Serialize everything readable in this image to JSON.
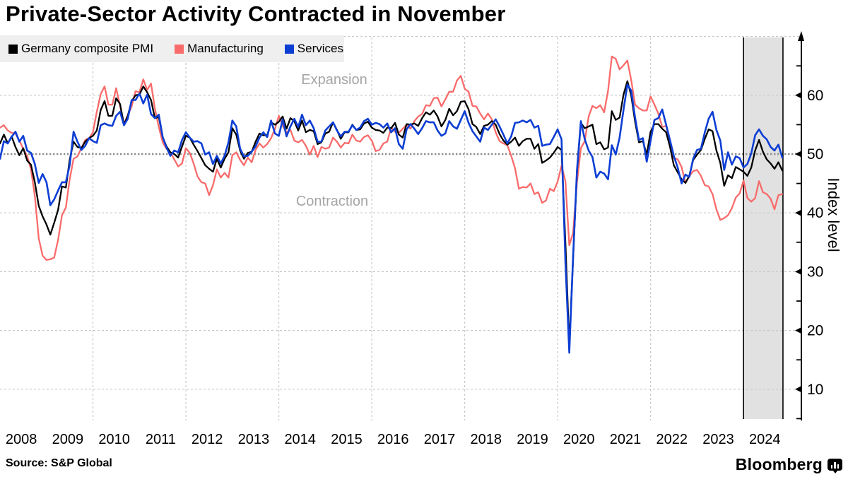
{
  "title": "Private-Sector Activity Contracted in November",
  "source": "Source: S&P Global",
  "brand": "Bloomberg",
  "annotations": {
    "expansion": "Expansion",
    "contraction": "Contraction"
  },
  "legend": [
    {
      "label": "Germany composite PMI",
      "color": "#000000"
    },
    {
      "label": "Manufacturing",
      "color": "#f96b6b"
    },
    {
      "label": "Services",
      "color": "#0d3ed4"
    }
  ],
  "y_axis": {
    "label": "Index level",
    "ticks": [
      10,
      20,
      30,
      40,
      50,
      60
    ],
    "minor_ticks": [
      5,
      15,
      25,
      35,
      45,
      55,
      65
    ],
    "baseline": 50,
    "range": [
      4.5,
      70
    ]
  },
  "x_axis": {
    "years": [
      2008,
      2009,
      2010,
      2011,
      2012,
      2013,
      2014,
      2015,
      2016,
      2017,
      2018,
      2019,
      2020,
      2021,
      2022,
      2023,
      2024
    ],
    "gridline_years": [
      2010,
      2012,
      2014,
      2016,
      2018,
      2020,
      2022
    ]
  },
  "highlight_band": {
    "start": "2024-01",
    "end": "2024-11",
    "fill": "#e1e1e1"
  },
  "chart_data": {
    "type": "line",
    "x_start": "2008-01",
    "x_end": "2024-11",
    "frequency": "monthly",
    "title": "Private-Sector Activity Contracted in November",
    "ylabel": "Index level",
    "ylim": [
      4.5,
      70
    ],
    "grid": true,
    "legend_position": "top-left",
    "reference_line": 50,
    "series": [
      {
        "name": "Germany composite PMI",
        "color": "#000000",
        "values": [
          51.8,
          53.3,
          51.8,
          53.0,
          51.2,
          49.8,
          51.0,
          48.9,
          48.2,
          45.2,
          41.2,
          39.4,
          38.0,
          36.3,
          38.3,
          40.5,
          44.5,
          44.3,
          49.0,
          52.1,
          51.2,
          51.0,
          52.1,
          52.7,
          53.1,
          54.0,
          57.5,
          59.0,
          56.5,
          56.5,
          59.5,
          58.5,
          55.0,
          56.5,
          59.0,
          60.0,
          60.1,
          61.5,
          60.5,
          59.2,
          56.1,
          56.3,
          52.9,
          51.3,
          50.3,
          50.0,
          49.4,
          51.3,
          53.1,
          52.8,
          51.6,
          50.5,
          49.3,
          48.1,
          47.5,
          47.0,
          49.2,
          47.7,
          49.2,
          50.3,
          54.4,
          53.3,
          50.6,
          49.2,
          50.2,
          50.4,
          52.1,
          53.5,
          53.2,
          53.2,
          55.4,
          55.0,
          55.5,
          56.4,
          54.3,
          56.1,
          55.6,
          54.0,
          55.7,
          53.7,
          54.1,
          53.9,
          51.7,
          52.0,
          53.5,
          53.8,
          55.4,
          54.1,
          52.6,
          53.7,
          53.7,
          55.0,
          54.1,
          54.2,
          55.2,
          55.5,
          54.5,
          54.1,
          54.0,
          53.6,
          54.5,
          54.4,
          55.3,
          53.3,
          52.8,
          55.1,
          55.0,
          55.2,
          54.8,
          56.1,
          57.1,
          56.7,
          57.4,
          56.4,
          54.7,
          55.8,
          57.7,
          56.6,
          57.3,
          58.9,
          59.0,
          57.6,
          55.1,
          54.6,
          53.4,
          54.8,
          55.0,
          55.6,
          55.0,
          53.4,
          52.3,
          51.6,
          52.1,
          52.8,
          51.4,
          52.2,
          52.6,
          52.6,
          50.9,
          51.7,
          48.5,
          48.9,
          49.4,
          50.2,
          51.2,
          50.7,
          35.0,
          17.4,
          32.3,
          47.0,
          55.3,
          54.4,
          54.7,
          55.0,
          51.7,
          52.0,
          50.8,
          51.1,
          57.3,
          55.8,
          56.2,
          60.1,
          62.4,
          60.0,
          55.5,
          52.0,
          52.2,
          49.9,
          53.8,
          55.1,
          55.1,
          54.3,
          53.7,
          51.3,
          48.1,
          46.9,
          45.7,
          45.1,
          46.3,
          49.0,
          49.9,
          50.7,
          52.6,
          54.2,
          53.9,
          50.6,
          48.5,
          44.6,
          46.4,
          45.9,
          47.8,
          47.4,
          47.0,
          46.3,
          47.7,
          50.6,
          52.4,
          50.4,
          49.1,
          48.4,
          47.5,
          48.6,
          47.2
        ]
      },
      {
        "name": "Manufacturing",
        "color": "#f96b6b",
        "values": [
          54.5,
          54.9,
          54.0,
          53.6,
          53.5,
          52.3,
          50.9,
          49.7,
          47.4,
          42.9,
          35.7,
          32.7,
          32.0,
          32.1,
          32.4,
          35.4,
          39.6,
          40.9,
          45.7,
          49.2,
          49.6,
          51.0,
          52.4,
          52.7,
          53.7,
          57.2,
          60.2,
          61.5,
          58.4,
          58.4,
          61.2,
          58.2,
          55.1,
          56.6,
          58.1,
          60.7,
          60.5,
          62.7,
          60.9,
          62.0,
          57.7,
          54.6,
          52.0,
          50.9,
          50.3,
          49.1,
          47.9,
          48.4,
          51.0,
          50.2,
          48.4,
          46.2,
          45.2,
          45.0,
          43.0,
          44.7,
          47.4,
          46.0,
          46.8,
          46.0,
          49.8,
          50.3,
          49.0,
          48.1,
          49.4,
          48.6,
          50.7,
          51.8,
          51.1,
          51.7,
          52.7,
          54.3,
          56.5,
          54.8,
          53.7,
          54.1,
          52.3,
          52.0,
          52.4,
          51.4,
          49.9,
          51.4,
          49.5,
          51.2,
          50.9,
          51.1,
          52.8,
          52.1,
          51.1,
          51.9,
          51.8,
          53.3,
          52.3,
          52.1,
          52.9,
          53.2,
          52.3,
          50.5,
          50.7,
          51.8,
          52.1,
          54.5,
          53.8,
          53.6,
          54.3,
          55.0,
          54.3,
          55.6,
          56.4,
          56.8,
          58.3,
          58.2,
          59.5,
          59.6,
          58.1,
          59.3,
          60.6,
          60.6,
          62.5,
          63.3,
          61.1,
          60.6,
          58.2,
          58.1,
          56.9,
          55.9,
          56.9,
          55.9,
          53.7,
          52.2,
          51.8,
          51.5,
          49.7,
          47.6,
          44.1,
          44.4,
          44.3,
          45.0,
          43.2,
          43.5,
          41.7,
          42.1,
          44.1,
          43.7,
          45.3,
          48.0,
          45.4,
          34.5,
          36.6,
          45.2,
          51.0,
          52.2,
          56.4,
          58.2,
          57.8,
          58.3,
          57.1,
          60.7,
          66.6,
          66.2,
          64.4,
          65.1,
          65.9,
          62.6,
          58.4,
          57.8,
          57.4,
          57.4,
          59.8,
          58.4,
          56.9,
          54.6,
          54.8,
          52.0,
          49.3,
          49.1,
          47.8,
          45.1,
          46.2,
          47.1,
          47.3,
          46.3,
          44.7,
          44.5,
          43.2,
          40.6,
          38.8,
          39.1,
          39.6,
          40.8,
          42.6,
          43.3,
          45.5,
          42.5,
          41.9,
          42.5,
          45.4,
          43.5,
          43.2,
          42.4,
          40.6,
          43.0,
          43.2
        ]
      },
      {
        "name": "Services",
        "color": "#0d3ed4",
        "values": [
          49.2,
          52.2,
          51.8,
          52.9,
          53.8,
          52.1,
          53.1,
          50.6,
          50.2,
          48.3,
          45.1,
          46.6,
          45.2,
          41.3,
          42.3,
          43.8,
          45.2,
          45.2,
          48.1,
          53.8,
          52.1,
          50.7,
          51.4,
          52.7,
          52.2,
          51.9,
          54.9,
          55.2,
          54.9,
          54.8,
          56.5,
          57.2,
          54.9,
          56.0,
          59.2,
          59.2,
          60.3,
          58.6,
          60.1,
          56.8,
          56.1,
          56.7,
          52.9,
          51.1,
          49.7,
          50.6,
          50.3,
          52.4,
          53.7,
          52.8,
          52.1,
          52.2,
          51.8,
          49.9,
          50.3,
          48.3,
          49.7,
          48.4,
          49.7,
          52.0,
          55.7,
          54.7,
          50.9,
          49.6,
          49.7,
          50.4,
          51.3,
          52.8,
          53.7,
          52.9,
          55.7,
          53.5,
          53.1,
          55.9,
          53.0,
          54.7,
          56.0,
          54.6,
          56.7,
          54.9,
          55.7,
          54.4,
          52.1,
          52.1,
          54.0,
          54.7,
          55.4,
          54.0,
          53.0,
          53.8,
          53.8,
          54.9,
          54.1,
          54.5,
          55.6,
          56.0,
          55.0,
          55.3,
          55.1,
          54.5,
          55.2,
          53.7,
          54.4,
          51.7,
          50.9,
          54.2,
          55.1,
          54.3,
          53.4,
          54.4,
          55.6,
          55.4,
          55.4,
          54.0,
          53.1,
          53.5,
          55.6,
          54.7,
          54.3,
          55.8,
          57.3,
          55.3,
          53.9,
          53.0,
          52.1,
          54.5,
          54.1,
          55.0,
          55.9,
          54.7,
          53.3,
          51.8,
          53.0,
          55.3,
          55.4,
          55.7,
          55.4,
          55.8,
          54.5,
          54.8,
          51.4,
          51.6,
          51.7,
          52.9,
          54.2,
          52.5,
          31.7,
          16.2,
          32.6,
          47.3,
          55.6,
          52.5,
          50.6,
          49.5,
          46.0,
          47.0,
          46.7,
          45.7,
          51.5,
          49.9,
          52.8,
          57.5,
          61.8,
          60.8,
          56.2,
          52.4,
          52.7,
          48.7,
          52.2,
          55.8,
          56.1,
          57.6,
          55.0,
          52.4,
          49.7,
          47.7,
          45.0,
          46.5,
          46.1,
          49.2,
          50.7,
          50.9,
          53.7,
          56.0,
          57.2,
          54.1,
          52.3,
          47.3,
          50.3,
          48.2,
          49.6,
          49.3,
          47.7,
          48.3,
          50.1,
          53.2,
          54.2,
          53.1,
          52.5,
          51.2,
          50.6,
          51.6,
          49.4
        ]
      }
    ]
  }
}
